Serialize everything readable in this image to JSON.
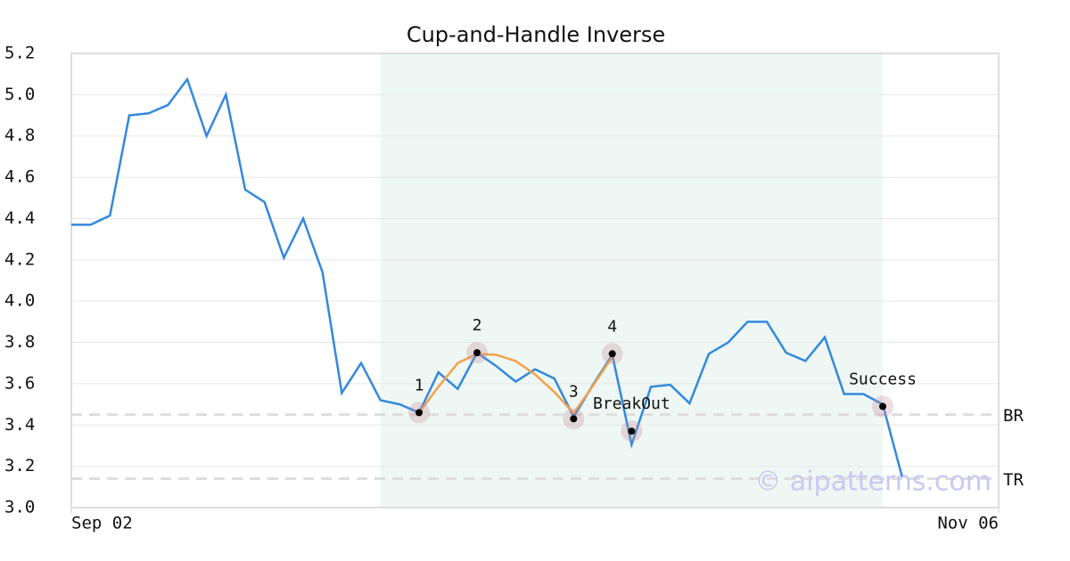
{
  "chart_data": {
    "type": "line",
    "title": "Cup-and-Handle Inverse",
    "x": [
      0,
      1,
      2,
      3,
      4,
      5,
      6,
      7,
      8,
      9,
      10,
      11,
      12,
      13,
      14,
      15,
      16,
      17,
      18,
      19,
      20,
      21,
      22,
      23,
      24,
      25,
      26,
      27,
      28,
      29,
      30,
      31,
      32,
      33,
      34,
      35,
      36,
      37,
      38,
      39,
      40,
      41,
      42,
      43
    ],
    "series": [
      {
        "color": "#3388dd",
        "values": [
          4.37,
          4.37,
          4.415,
          4.9,
          4.91,
          4.95,
          5.075,
          4.8,
          5.0,
          4.54,
          4.48,
          4.21,
          4.4,
          4.14,
          3.555,
          3.7,
          3.52,
          3.5,
          3.46,
          3.655,
          3.575,
          3.75,
          3.685,
          3.61,
          3.67,
          3.625,
          3.44,
          3.595,
          3.74,
          3.305,
          3.585,
          3.595,
          3.505,
          3.745,
          3.8,
          3.9,
          3.9,
          3.75,
          3.71,
          3.825,
          3.55,
          3.55,
          3.5,
          3.15
        ]
      }
    ],
    "fit": {
      "color": "#f5a04a",
      "x": [
        18,
        19,
        20,
        21,
        22,
        23,
        24,
        25,
        26,
        27,
        28
      ],
      "values": [
        3.46,
        3.585,
        3.7,
        3.745,
        3.74,
        3.71,
        3.645,
        3.56,
        3.457,
        3.59,
        3.73
      ]
    },
    "xlim": [
      0,
      48
    ],
    "xticks": [
      {
        "value": 0,
        "label": "Sep 02"
      },
      {
        "value": 48,
        "label": "Nov 06"
      }
    ],
    "ylim": [
      3.0,
      5.2
    ],
    "yticks": [
      {
        "value": 3.0,
        "label": "3.0"
      },
      3.2,
      3.4,
      3.6,
      3.8,
      {
        "value": 4.0,
        "label": "4.0"
      },
      4.2,
      4.4,
      4.6,
      4.8,
      {
        "value": 5.0,
        "label": "5.0"
      },
      5.2
    ],
    "grid": true,
    "highlight": {
      "x": [
        16,
        42
      ],
      "color": "#eef7f3"
    },
    "levels": [
      {
        "label": "BR",
        "value": 3.45
      },
      {
        "label": "TR",
        "value": 3.14
      }
    ],
    "points": [
      {
        "label": "1",
        "x": 18,
        "value": 3.46
      },
      {
        "label": "2",
        "x": 21,
        "value": 3.75
      },
      {
        "label": "3",
        "x": 26,
        "value": 3.43
      },
      {
        "label": "4",
        "x": 28,
        "value": 3.745
      },
      {
        "label": "BreakOut",
        "x": 29,
        "value": 3.37
      },
      {
        "label": "Success",
        "x": 42,
        "value": 3.49
      }
    ],
    "watermark": "© aipatterns.com"
  }
}
